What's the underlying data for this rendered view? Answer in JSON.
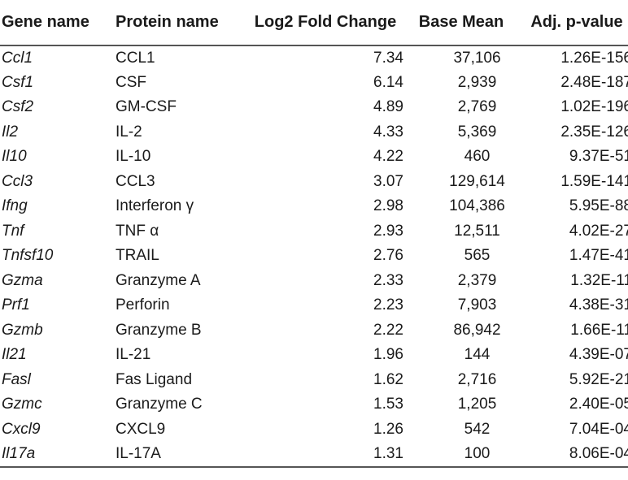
{
  "headers": [
    "Gene name",
    "Protein name",
    "Log2 Fold Change",
    "Base Mean",
    "Adj. p-value"
  ],
  "rows": [
    {
      "gene": "Ccl1",
      "protein": "CCL1",
      "log2fc": "7.34",
      "base_mean": "37,106",
      "padj": "1.26E-156"
    },
    {
      "gene": "Csf1",
      "protein": "CSF",
      "log2fc": "6.14",
      "base_mean": "2,939",
      "padj": "2.48E-187"
    },
    {
      "gene": "Csf2",
      "protein": "GM-CSF",
      "log2fc": "4.89",
      "base_mean": "2,769",
      "padj": "1.02E-196"
    },
    {
      "gene": "Il2",
      "protein": "IL-2",
      "log2fc": "4.33",
      "base_mean": "5,369",
      "padj": "2.35E-126"
    },
    {
      "gene": "Il10",
      "protein": "IL-10",
      "log2fc": "4.22",
      "base_mean": "460",
      "padj": "9.37E-51"
    },
    {
      "gene": "Ccl3",
      "protein": "CCL3",
      "log2fc": "3.07",
      "base_mean": "129,614",
      "padj": "1.59E-141"
    },
    {
      "gene": "Ifng",
      "protein": "Interferon γ",
      "log2fc": "2.98",
      "base_mean": "104,386",
      "padj": "5.95E-88"
    },
    {
      "gene": "Tnf",
      "protein": "TNF α",
      "log2fc": "2.93",
      "base_mean": "12,511",
      "padj": "4.02E-27"
    },
    {
      "gene": "Tnfsf10",
      "protein": "TRAIL",
      "log2fc": "2.76",
      "base_mean": "565",
      "padj": "1.47E-41"
    },
    {
      "gene": "Gzma",
      "protein": "Granzyme A",
      "log2fc": "2.33",
      "base_mean": "2,379",
      "padj": "1.32E-11"
    },
    {
      "gene": "Prf1",
      "protein": "Perforin",
      "log2fc": "2.23",
      "base_mean": "7,903",
      "padj": "4.38E-31"
    },
    {
      "gene": "Gzmb",
      "protein": "Granzyme B",
      "log2fc": "2.22",
      "base_mean": "86,942",
      "padj": "1.66E-11"
    },
    {
      "gene": "Il21",
      "protein": "IL-21",
      "log2fc": "1.96",
      "base_mean": "144",
      "padj": "4.39E-07"
    },
    {
      "gene": "Fasl",
      "protein": "Fas Ligand",
      "log2fc": "1.62",
      "base_mean": "2,716",
      "padj": "5.92E-21"
    },
    {
      "gene": "Gzmc",
      "protein": "Granzyme C",
      "log2fc": "1.53",
      "base_mean": "1,205",
      "padj": "2.40E-05"
    },
    {
      "gene": "Cxcl9",
      "protein": "CXCL9",
      "log2fc": "1.26",
      "base_mean": "542",
      "padj": "7.04E-04"
    },
    {
      "gene": "Il17a",
      "protein": "IL-17A",
      "log2fc": "1.31",
      "base_mean": "100",
      "padj": "8.06E-04"
    }
  ]
}
